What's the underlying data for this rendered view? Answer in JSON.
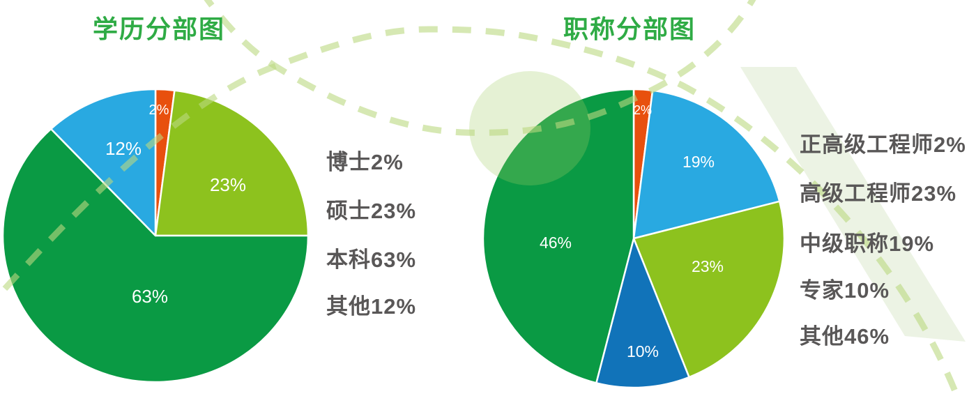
{
  "page": {
    "background": "#ffffff"
  },
  "colors": {
    "title_green": "#2fab45",
    "legend_text": "#595757",
    "slice_label": "#ffffff",
    "decor_dash": "rgba(187,216,128,0.6)",
    "decor_band": "#ecf3e4",
    "decor_circle": "rgba(160,205,100,0.28)"
  },
  "chart_data": [
    {
      "type": "pie",
      "title": "学历分部图",
      "unit": "%",
      "direction": "clockwise",
      "start_angle_deg": 0,
      "legend_position": "right",
      "slices": [
        {
          "label": "博士",
          "value": 2,
          "display": "2%",
          "color": "#e8500e"
        },
        {
          "label": "硕士",
          "value": 23,
          "display": "23%",
          "color": "#8dc21e"
        },
        {
          "label": "本科",
          "value": 63,
          "display": "63%",
          "color": "#0a9a44"
        },
        {
          "label": "其他",
          "value": 12,
          "display": "12%",
          "color": "#29a9e1"
        }
      ],
      "legend": [
        "博士2%",
        "硕士23%",
        "本科63%",
        "其他12%"
      ]
    },
    {
      "type": "pie",
      "title": "职称分部图",
      "unit": "%",
      "direction": "clockwise",
      "start_angle_deg": 0,
      "legend_position": "right",
      "slices": [
        {
          "label": "正高级工程师",
          "value": 2,
          "display": "2%",
          "color": "#e8500e"
        },
        {
          "label": "中级职称",
          "value": 19,
          "display": "19%",
          "color": "#29a9e1"
        },
        {
          "label": "高级工程师",
          "value": 23,
          "display": "23%",
          "color": "#8dc21e"
        },
        {
          "label": "专家",
          "value": 10,
          "display": "10%",
          "color": "#1173b9"
        },
        {
          "label": "其他",
          "value": 46,
          "display": "46%",
          "color": "#0a9a44"
        }
      ],
      "legend": [
        "正高级工程师2%",
        "高级工程师23%",
        "中级职称19%",
        "专家10%",
        "其他46%"
      ]
    }
  ]
}
